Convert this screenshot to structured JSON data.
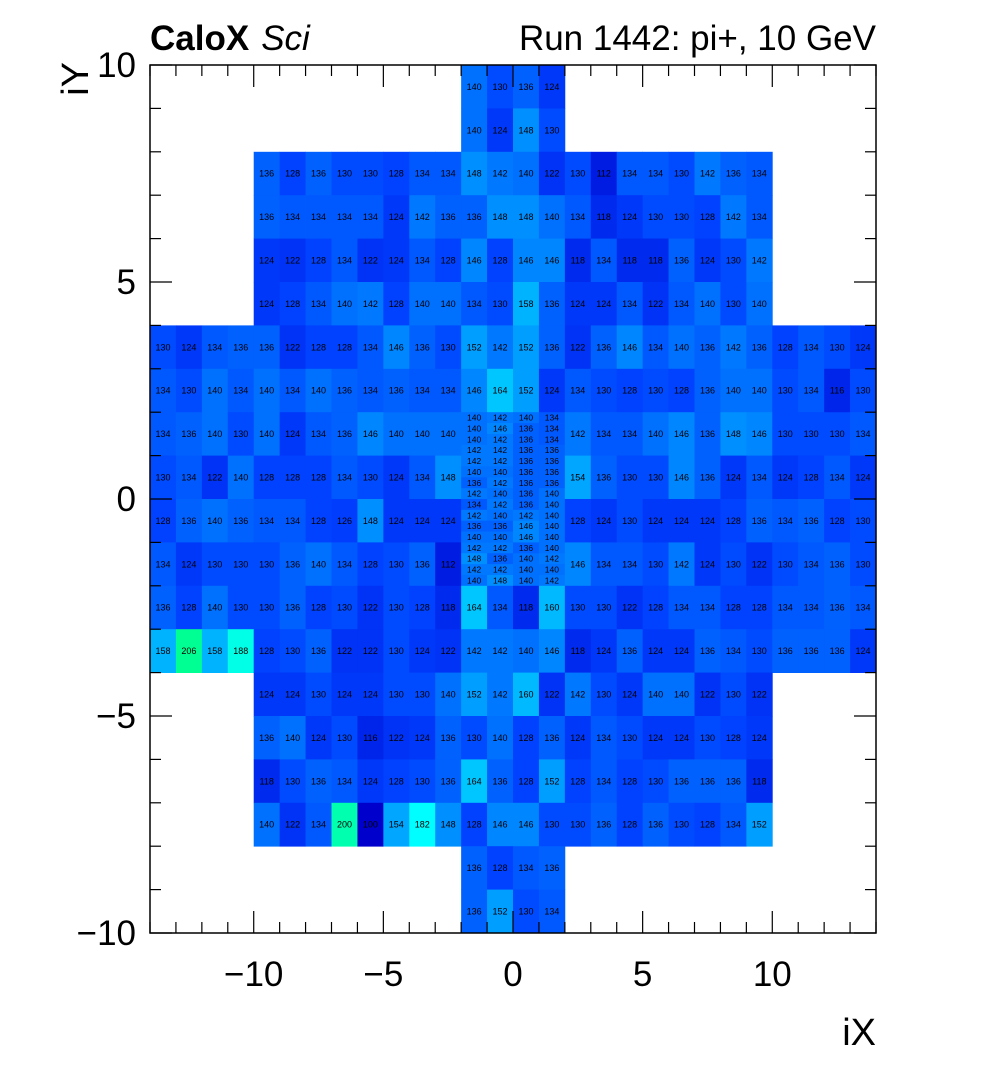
{
  "header": {
    "brand": "CaloX",
    "brand_sub": "Sci",
    "run_label": "Run 1442: pi+, 10 GeV"
  },
  "chart_data": {
    "type": "heatmap",
    "xlabel": "iX",
    "ylabel": "iY",
    "xlim": [
      -14,
      14
    ],
    "ylim": [
      -10,
      10
    ],
    "x_ticks": [
      -10,
      -5,
      0,
      5,
      10
    ],
    "y_ticks": [
      -10,
      -5,
      0,
      5,
      10
    ],
    "x_tick_labels": [
      "−10",
      "−5",
      "0",
      "5",
      "10"
    ],
    "y_tick_labels": [
      "−10",
      "−5",
      "0",
      "5",
      "10"
    ],
    "colormap": [
      "#0000cc",
      "#0040ff",
      "#00aaff",
      "#00ffff",
      "#00ff80"
    ],
    "color_range": [
      100,
      210
    ],
    "blocks": [
      {
        "x0": -2,
        "x1": 2,
        "y0": 9,
        "y1": 10,
        "values": [
          [
            140,
            130,
            136,
            124
          ]
        ]
      },
      {
        "x0": -2,
        "x1": 2,
        "y0": 8,
        "y1": 9,
        "values": [
          [
            140,
            124,
            148,
            130
          ]
        ]
      },
      {
        "x0": -10,
        "x1": 10,
        "y0": 4,
        "y1": 8,
        "values": [
          [
            136,
            128,
            136,
            130,
            130,
            128,
            134,
            134,
            148,
            142,
            140,
            122,
            130,
            112,
            134,
            134,
            130,
            142,
            136,
            134
          ],
          [
            136,
            134,
            134,
            134,
            134,
            124,
            142,
            136,
            136,
            148,
            148,
            140,
            134,
            118,
            124,
            130,
            130,
            128,
            142,
            134
          ],
          [
            124,
            122,
            128,
            134,
            122,
            124,
            134,
            128,
            146,
            128,
            146,
            146,
            118,
            134,
            118,
            118,
            136,
            124,
            130,
            142
          ],
          [
            124,
            128,
            134,
            140,
            142,
            128,
            140,
            140,
            134,
            130,
            158,
            136,
            124,
            124,
            134,
            122,
            134,
            140,
            130,
            140
          ]
        ]
      },
      {
        "x0": -14,
        "x1": -2,
        "y0": -4,
        "y1": 4,
        "values": [
          [
            130,
            124,
            134,
            136,
            136,
            122,
            128,
            128,
            134,
            146,
            136,
            130
          ],
          [
            134,
            130,
            140,
            134,
            140,
            134,
            140,
            136,
            134,
            136,
            134,
            134
          ],
          [
            134,
            136,
            140,
            130,
            140,
            124,
            134,
            136,
            146,
            140,
            140,
            140
          ],
          [
            130,
            134,
            122,
            140,
            128,
            128,
            128,
            134,
            130,
            124,
            134,
            148
          ],
          [
            128,
            136,
            140,
            136,
            134,
            134,
            128,
            126,
            148,
            124,
            124,
            124
          ],
          [
            134,
            124,
            130,
            130,
            130,
            136,
            140,
            134,
            128,
            130,
            136,
            112
          ],
          [
            136,
            128,
            140,
            130,
            130,
            136,
            128,
            130,
            122,
            130,
            128,
            118
          ],
          [
            158,
            206,
            158,
            188,
            128,
            130,
            136,
            122,
            122,
            130,
            124,
            122
          ]
        ]
      },
      {
        "x0": -2,
        "x1": 2,
        "y0": 2,
        "y1": 4,
        "values": [
          [
            152,
            142,
            152,
            136
          ],
          [
            146,
            164,
            152,
            124
          ]
        ]
      },
      {
        "x0": -2,
        "x1": 2,
        "y0": -2,
        "y1": 2,
        "values": [
          [
            140,
            142,
            140,
            134
          ],
          [
            140,
            146,
            136,
            134
          ],
          [
            140,
            142,
            136,
            134
          ],
          [
            142,
            142,
            136,
            136
          ],
          [
            142,
            142,
            136,
            136
          ],
          [
            140,
            140,
            136,
            136
          ],
          [
            136,
            142,
            136,
            136
          ],
          [
            142,
            140,
            136,
            140
          ],
          [
            134,
            142,
            136,
            140
          ],
          [
            142,
            140,
            142,
            140
          ],
          [
            136,
            136,
            146,
            140
          ],
          [
            140,
            140,
            146,
            140
          ],
          [
            142,
            142,
            136,
            140
          ],
          [
            148,
            136,
            140,
            142
          ],
          [
            142,
            142,
            140,
            140
          ],
          [
            140,
            148,
            140,
            142
          ]
        ]
      },
      {
        "x0": -2,
        "x1": 2,
        "y0": -4,
        "y1": -2,
        "values": [
          [
            164,
            134,
            118,
            160
          ],
          [
            142,
            142,
            140,
            146
          ]
        ]
      },
      {
        "x0": 2,
        "x1": 14,
        "y0": -4,
        "y1": 4,
        "values": [
          [
            122,
            136,
            146,
            134,
            140,
            136,
            142,
            136,
            128,
            134,
            130,
            124
          ],
          [
            134,
            130,
            128,
            130,
            128,
            136,
            140,
            140,
            130,
            134,
            116,
            130
          ],
          [
            142,
            134,
            134,
            140,
            146,
            136,
            148,
            146,
            130,
            130,
            130,
            134
          ],
          [
            154,
            136,
            130,
            130,
            146,
            136,
            124,
            134,
            124,
            128,
            134,
            124
          ],
          [
            128,
            124,
            130,
            124,
            124,
            124,
            128,
            136,
            134,
            136,
            128,
            130
          ],
          [
            146,
            134,
            134,
            130,
            142,
            124,
            130,
            122,
            130,
            134,
            136,
            130
          ],
          [
            130,
            130,
            122,
            128,
            134,
            134,
            128,
            128,
            134,
            134,
            136,
            134
          ],
          [
            118,
            124,
            136,
            124,
            124,
            136,
            134,
            130,
            136,
            136,
            136,
            124
          ]
        ]
      },
      {
        "x0": -10,
        "x1": 10,
        "y0": -8,
        "y1": -4,
        "values": [
          [
            124,
            124,
            130,
            124,
            124,
            130,
            130,
            140,
            152,
            142,
            160,
            122,
            142,
            130,
            124,
            140,
            140,
            122,
            130,
            122
          ],
          [
            136,
            140,
            124,
            130,
            116,
            122,
            124,
            136,
            130,
            140,
            128,
            136,
            124,
            134,
            130,
            124,
            124,
            130,
            128,
            124
          ],
          [
            118,
            130,
            136,
            134,
            124,
            128,
            130,
            136,
            164,
            136,
            128,
            152,
            128,
            134,
            128,
            130,
            136,
            136,
            136,
            118
          ],
          [
            140,
            122,
            134,
            200,
            100,
            154,
            182,
            148,
            128,
            146,
            146,
            130,
            130,
            136,
            128,
            136,
            130,
            128,
            134,
            152
          ]
        ]
      },
      {
        "x0": -2,
        "x1": 2,
        "y0": -9,
        "y1": -8,
        "values": [
          [
            136,
            128,
            134,
            136
          ]
        ]
      },
      {
        "x0": -2,
        "x1": 2,
        "y0": -10,
        "y1": -9,
        "values": [
          [
            136,
            152,
            130,
            134
          ]
        ]
      }
    ]
  }
}
